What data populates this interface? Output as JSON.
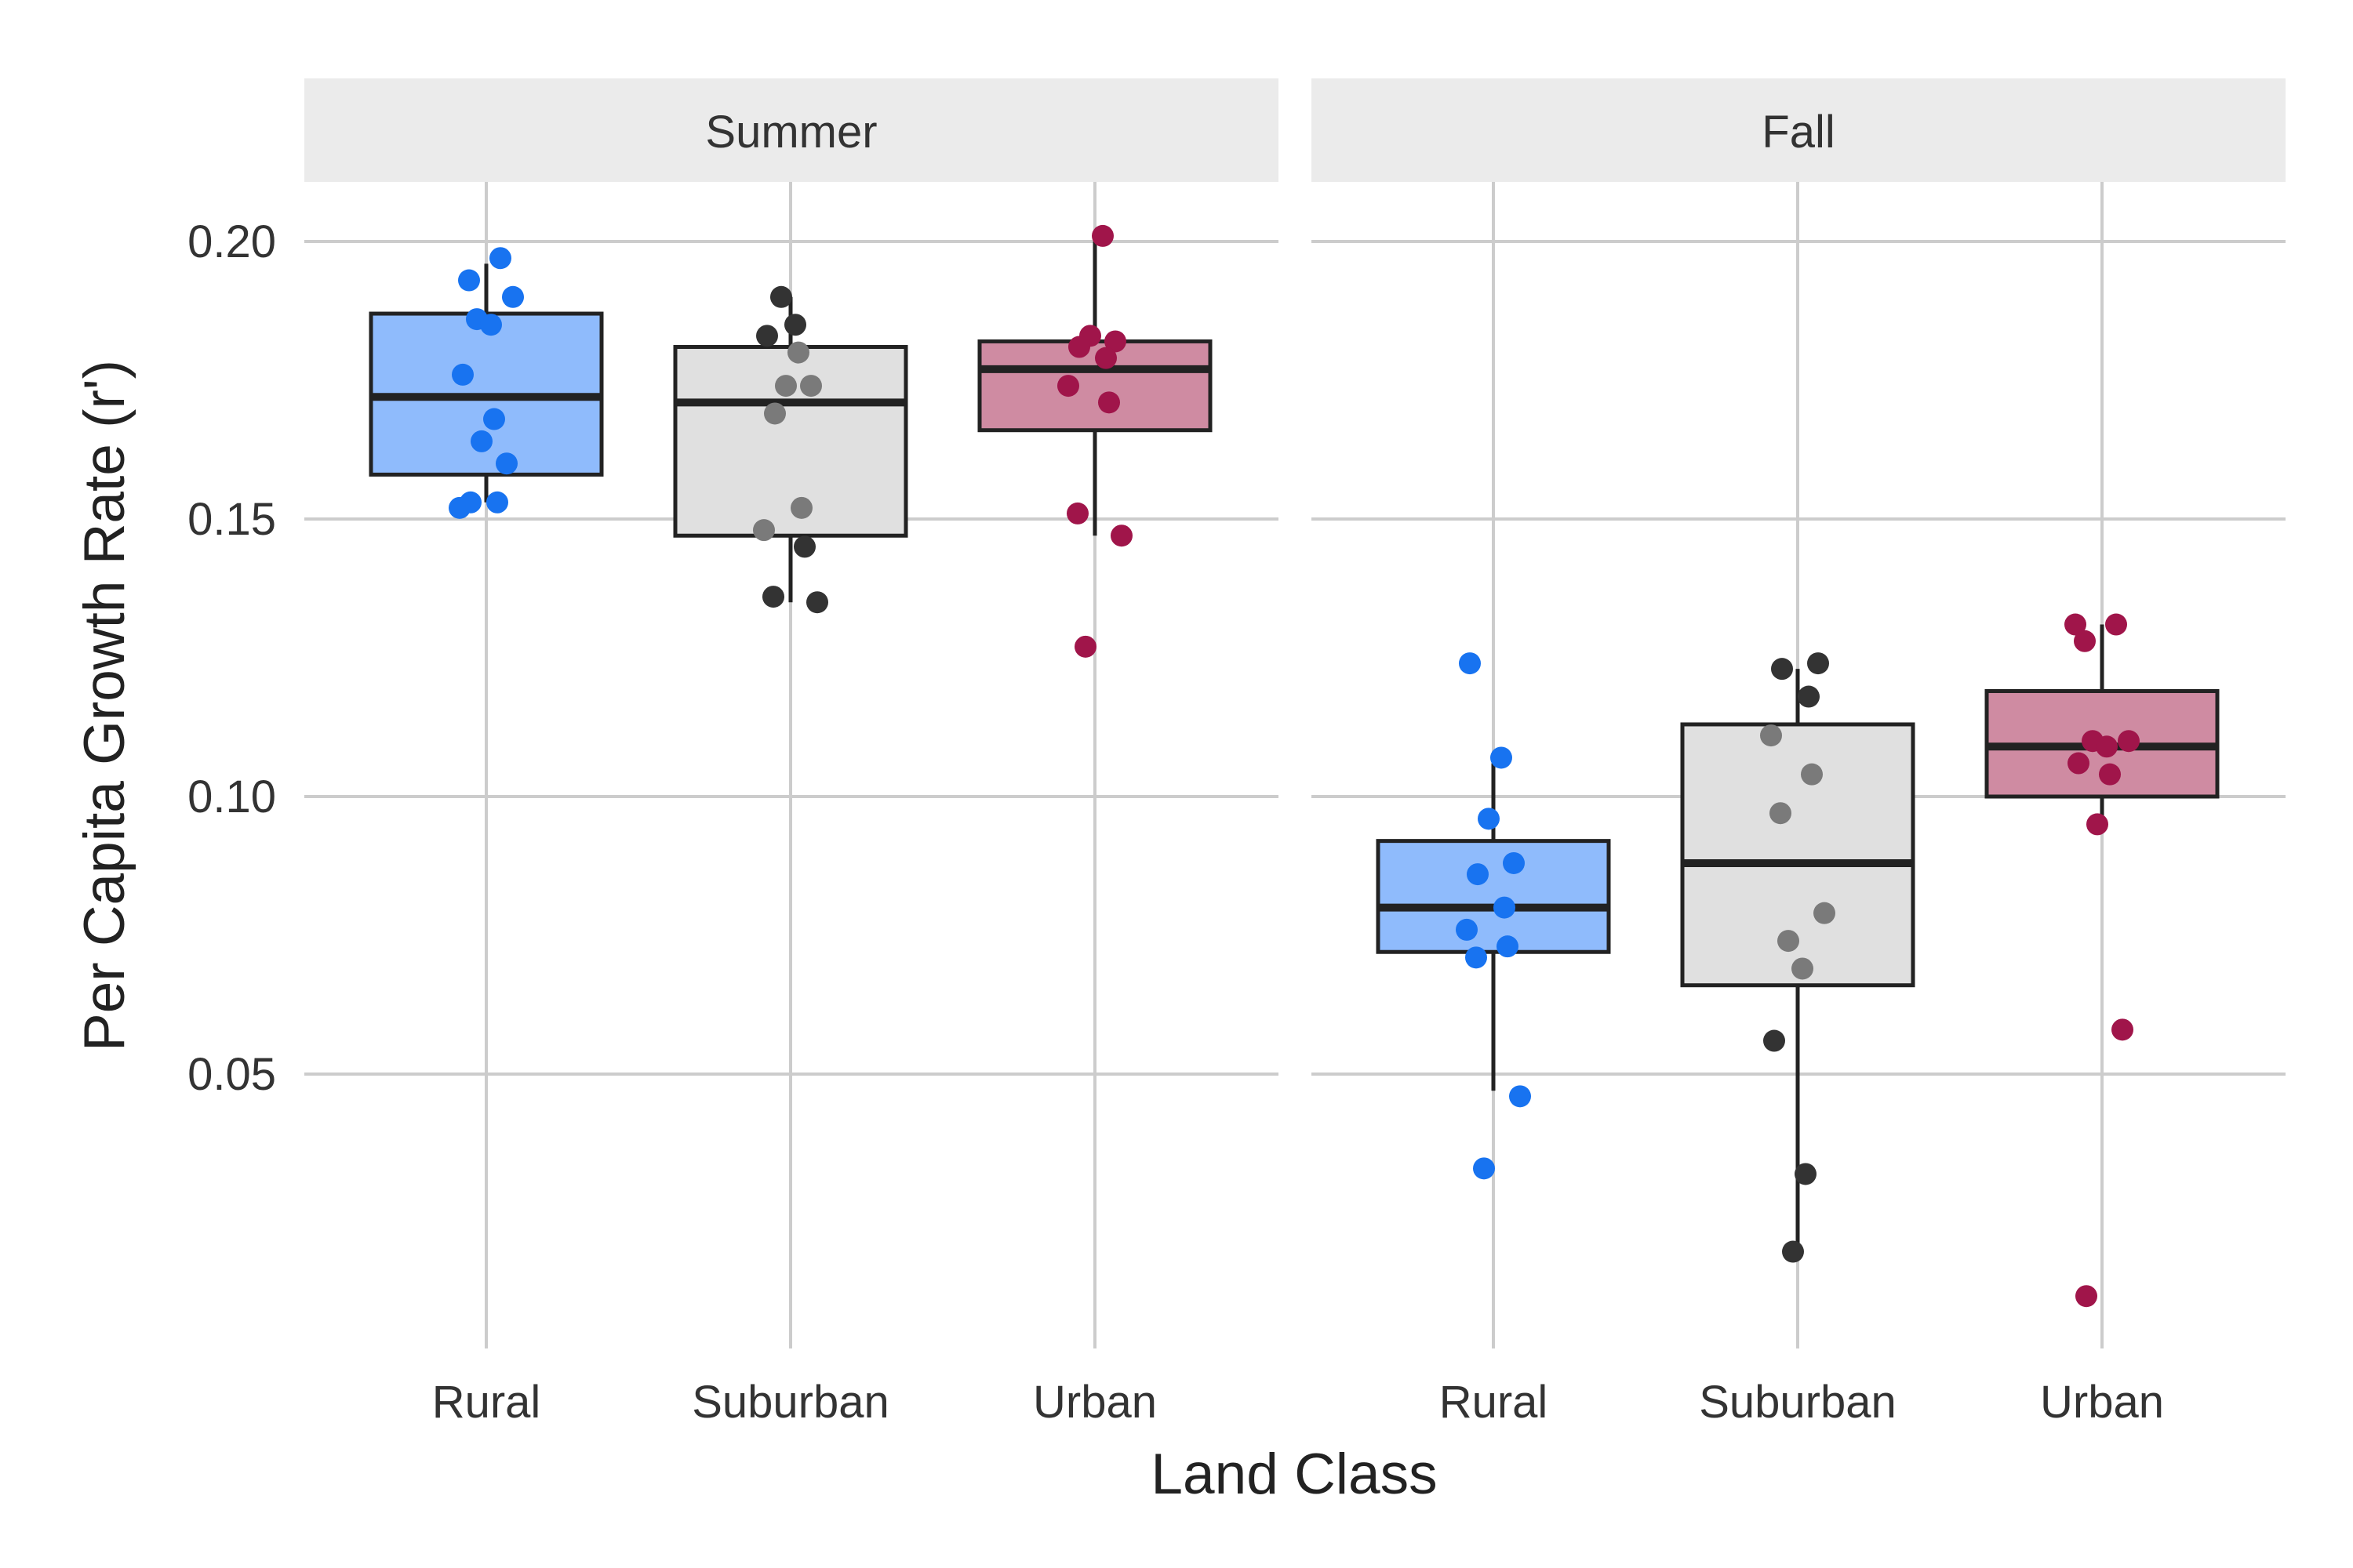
{
  "chart_data": {
    "type": "box",
    "title": "",
    "xlabel": "Land Class",
    "ylabel": "Per Capita Growth Rate (r')",
    "ylim": [
      0.0,
      0.21
    ],
    "yticks": [
      "0.05",
      "0.10",
      "0.15",
      "0.20"
    ],
    "categories": [
      "Rural",
      "Suburban",
      "Urban"
    ],
    "colors": {
      "Rural": {
        "fill": "#8fbbfc",
        "point": "#1873f0"
      },
      "Suburban": {
        "fill": "#e0e0e0",
        "point": "#333333"
      },
      "Urban": {
        "fill": "#cf8ba2",
        "point": "#a0154a"
      }
    },
    "facets": [
      {
        "name": "Summer",
        "groups": [
          {
            "category": "Rural",
            "q1": 0.158,
            "median": 0.172,
            "q3": 0.187,
            "whisker_low": 0.153,
            "whisker_high": 0.196,
            "points": [
              0.197,
              0.193,
              0.19,
              0.186,
              0.185,
              0.176,
              0.168,
              0.164,
              0.16,
              0.153,
              0.153,
              0.152
            ]
          },
          {
            "category": "Suburban",
            "q1": 0.147,
            "median": 0.171,
            "q3": 0.181,
            "whisker_low": 0.135,
            "whisker_high": 0.19,
            "points": [
              0.19,
              0.185,
              0.183,
              0.18,
              0.174,
              0.174,
              0.169,
              0.152,
              0.148,
              0.145,
              0.136,
              0.135
            ]
          },
          {
            "category": "Urban",
            "q1": 0.166,
            "median": 0.177,
            "q3": 0.182,
            "whisker_low": 0.147,
            "whisker_high": 0.2,
            "points": [
              0.201,
              0.183,
              0.182,
              0.181,
              0.179,
              0.174,
              0.171,
              0.151,
              0.147,
              0.127
            ]
          }
        ]
      },
      {
        "name": "Fall",
        "groups": [
          {
            "category": "Rural",
            "q1": 0.072,
            "median": 0.08,
            "q3": 0.092,
            "whisker_low": 0.047,
            "whisker_high": 0.106,
            "points": [
              0.124,
              0.107,
              0.096,
              0.088,
              0.086,
              0.08,
              0.076,
              0.073,
              0.071,
              0.046,
              0.033
            ]
          },
          {
            "category": "Suburban",
            "q1": 0.066,
            "median": 0.088,
            "q3": 0.113,
            "whisker_low": 0.018,
            "whisker_high": 0.123,
            "points": [
              0.124,
              0.123,
              0.118,
              0.111,
              0.104,
              0.097,
              0.079,
              0.074,
              0.069,
              0.056,
              0.032,
              0.018
            ]
          },
          {
            "category": "Urban",
            "q1": 0.1,
            "median": 0.109,
            "q3": 0.119,
            "whisker_low": 0.095,
            "whisker_high": 0.131,
            "points": [
              0.131,
              0.131,
              0.128,
              0.11,
              0.11,
              0.109,
              0.106,
              0.104,
              0.095,
              0.058,
              0.01
            ]
          }
        ]
      }
    ]
  }
}
